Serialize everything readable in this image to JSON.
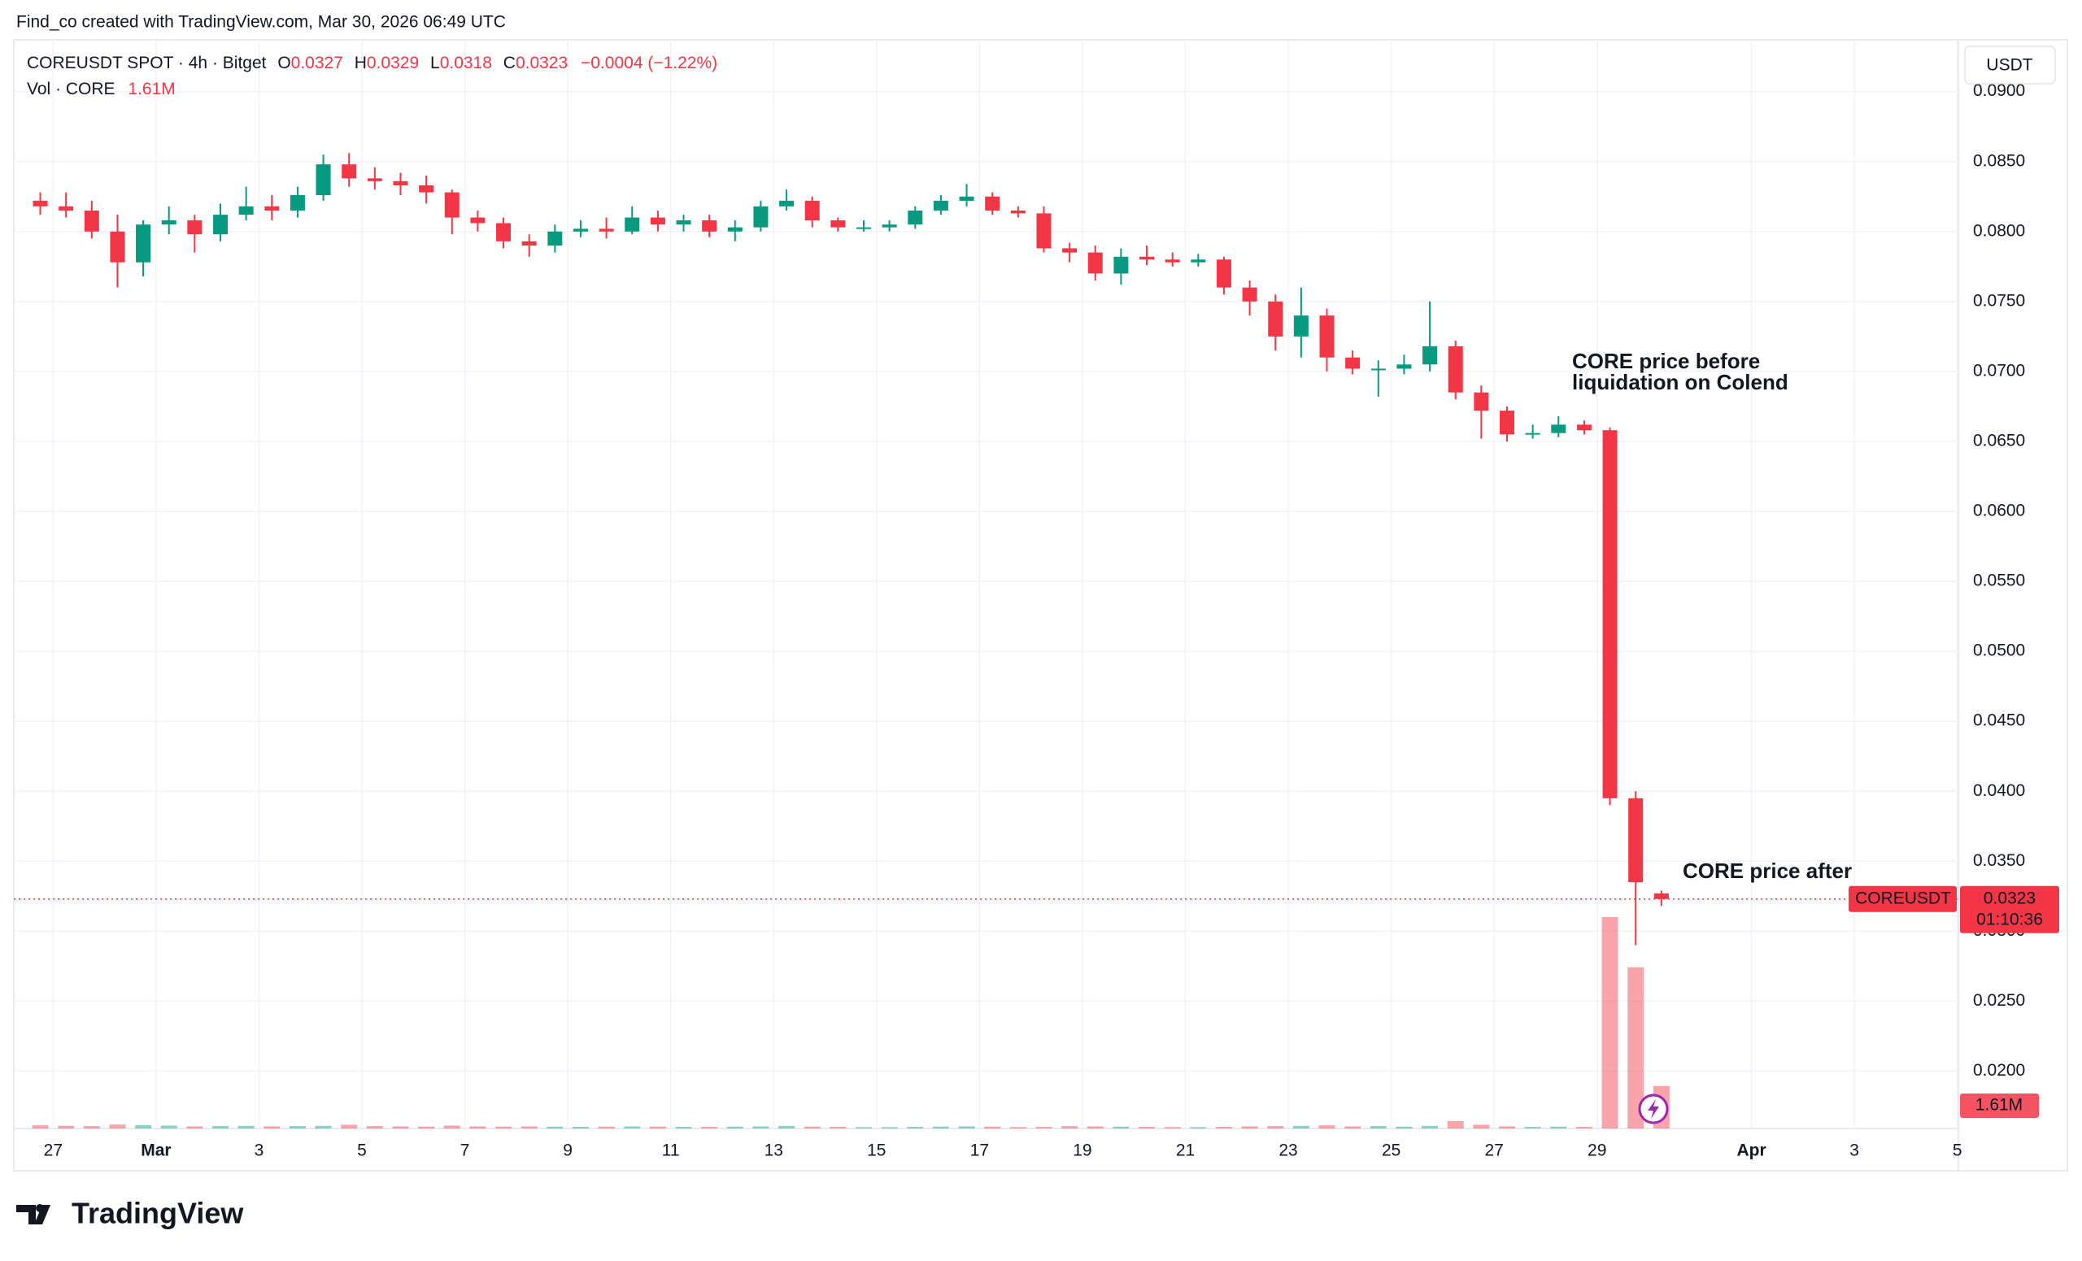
{
  "chart_data": {
    "type": "candlestick",
    "attribution": "Find_co created with TradingView.com, Mar 30, 2026 06:49 UTC",
    "symbol": "COREUSDT SPOT · 4h · Bitget",
    "ohlc_letters": [
      "O",
      "H",
      "L",
      "C"
    ],
    "change": "−0.0004 (−1.22%)",
    "volume_title": "Vol · CORE",
    "currency": "USDT",
    "symbol_tag": "COREUSDT",
    "countdown": "01:10:36",
    "brand": "TradingView",
    "annotations": [
      {
        "lines": [
          "CORE price before",
          "liquidation on Colend"
        ]
      },
      {
        "lines": [
          "CORE price after"
        ]
      }
    ],
    "up_color": "#089981",
    "down_color": "#f23645",
    "grid": true,
    "categories": [
      null,
      "27",
      null,
      null,
      null,
      "Mar",
      null,
      null,
      null,
      "3",
      null,
      null,
      null,
      "5",
      null,
      null,
      null,
      "7",
      null,
      null,
      null,
      "9",
      null,
      null,
      null,
      "11",
      null,
      null,
      null,
      "13",
      null,
      null,
      null,
      "15",
      null,
      null,
      null,
      "17",
      null,
      null,
      null,
      "19",
      null,
      null,
      null,
      "21",
      null,
      null,
      null,
      "23",
      null,
      null,
      null,
      "25",
      null,
      null,
      null,
      "27",
      null,
      null,
      null,
      "29",
      null,
      null,
      null,
      null,
      null,
      "Apr",
      null,
      null,
      null,
      "3",
      null,
      null,
      null,
      "5"
    ],
    "open": [
      0.0822,
      0.0818,
      0.0815,
      0.08,
      0.0778,
      0.0805,
      0.0808,
      0.0798,
      0.0812,
      0.0818,
      0.0815,
      0.0826,
      0.0848,
      0.0838,
      0.0836,
      0.0833,
      0.0828,
      0.081,
      0.0806,
      0.0793,
      0.079,
      0.08,
      0.0802,
      0.08,
      0.081,
      0.0805,
      0.0808,
      0.08,
      0.0803,
      0.0818,
      0.0822,
      0.0808,
      0.0803,
      0.0803,
      0.0805,
      0.0815,
      0.0822,
      0.0825,
      0.0815,
      0.0813,
      0.0788,
      0.0785,
      0.077,
      0.0782,
      0.078,
      0.0778,
      0.078,
      0.076,
      0.075,
      0.0725,
      0.074,
      0.071,
      0.0702,
      0.0702,
      0.0705,
      0.0718,
      0.0685,
      0.0672,
      0.0655,
      0.0656,
      0.0662,
      0.0658,
      0.0395,
      0.0327,
      null,
      null,
      null,
      null,
      null,
      null,
      null,
      null,
      null,
      null,
      null,
      null
    ],
    "high": [
      0.0828,
      0.0828,
      0.0822,
      0.0812,
      0.0808,
      0.0818,
      0.0812,
      0.082,
      0.0832,
      0.0826,
      0.0832,
      0.0855,
      0.0856,
      0.0846,
      0.0842,
      0.084,
      0.083,
      0.0815,
      0.081,
      0.0798,
      0.0805,
      0.0808,
      0.081,
      0.0818,
      0.0815,
      0.0812,
      0.0812,
      0.0808,
      0.0822,
      0.083,
      0.0825,
      0.081,
      0.0808,
      0.0808,
      0.0818,
      0.0826,
      0.0834,
      0.0828,
      0.0818,
      0.0818,
      0.0792,
      0.079,
      0.0788,
      0.079,
      0.0785,
      0.0784,
      0.0782,
      0.0765,
      0.0755,
      0.076,
      0.0745,
      0.0715,
      0.0708,
      0.0712,
      0.075,
      0.0722,
      0.069,
      0.0675,
      0.0662,
      0.0668,
      0.0665,
      0.066,
      0.04,
      0.0329,
      null,
      null,
      null,
      null,
      null,
      null,
      null,
      null,
      null,
      null,
      null,
      null
    ],
    "low": [
      0.0812,
      0.081,
      0.0795,
      0.076,
      0.0768,
      0.0798,
      0.0785,
      0.0793,
      0.0808,
      0.0808,
      0.081,
      0.0822,
      0.0832,
      0.083,
      0.0826,
      0.082,
      0.0798,
      0.08,
      0.0788,
      0.0782,
      0.0785,
      0.0796,
      0.0795,
      0.0798,
      0.08,
      0.08,
      0.0796,
      0.0793,
      0.08,
      0.0815,
      0.0803,
      0.08,
      0.08,
      0.08,
      0.0802,
      0.0812,
      0.0818,
      0.0812,
      0.081,
      0.0785,
      0.0778,
      0.0765,
      0.0762,
      0.0776,
      0.0775,
      0.0775,
      0.0755,
      0.074,
      0.0715,
      0.071,
      0.07,
      0.0698,
      0.0682,
      0.0698,
      0.07,
      0.068,
      0.0652,
      0.065,
      0.0652,
      0.0653,
      0.0655,
      0.039,
      0.029,
      0.0318,
      null,
      null,
      null,
      null,
      null,
      null,
      null,
      null,
      null,
      null,
      null,
      null
    ],
    "close": [
      0.0818,
      0.0815,
      0.08,
      0.0778,
      0.0805,
      0.0808,
      0.0798,
      0.0812,
      0.0818,
      0.0815,
      0.0826,
      0.0848,
      0.0838,
      0.0836,
      0.0833,
      0.0828,
      0.081,
      0.0806,
      0.0793,
      0.079,
      0.08,
      0.0802,
      0.08,
      0.081,
      0.0805,
      0.0808,
      0.08,
      0.0803,
      0.0818,
      0.0822,
      0.0808,
      0.0803,
      0.0803,
      0.0805,
      0.0815,
      0.0822,
      0.0825,
      0.0815,
      0.0813,
      0.0788,
      0.0785,
      0.077,
      0.0782,
      0.078,
      0.0778,
      0.078,
      0.076,
      0.075,
      0.0725,
      0.074,
      0.071,
      0.0702,
      0.0702,
      0.0705,
      0.0718,
      0.0685,
      0.0672,
      0.0655,
      0.0656,
      0.0662,
      0.0658,
      0.0395,
      0.0335,
      0.0323,
      null,
      null,
      null,
      null,
      null,
      null,
      null,
      null,
      null,
      null,
      null,
      null
    ],
    "volume": [
      0.12,
      0.1,
      0.09,
      0.15,
      0.13,
      0.11,
      0.08,
      0.09,
      0.1,
      0.08,
      0.09,
      0.1,
      0.14,
      0.09,
      0.08,
      0.07,
      0.11,
      0.08,
      0.07,
      0.08,
      0.07,
      0.06,
      0.07,
      0.08,
      0.07,
      0.06,
      0.06,
      0.07,
      0.08,
      0.1,
      0.07,
      0.06,
      0.05,
      0.05,
      0.06,
      0.07,
      0.08,
      0.07,
      0.05,
      0.06,
      0.09,
      0.08,
      0.07,
      0.06,
      0.05,
      0.05,
      0.06,
      0.08,
      0.09,
      0.1,
      0.12,
      0.08,
      0.09,
      0.07,
      0.1,
      0.28,
      0.14,
      0.08,
      0.06,
      0.07,
      0.06,
      8.0,
      6.1,
      1.61,
      null,
      null,
      null,
      null,
      null,
      null,
      null,
      null,
      null,
      null,
      null,
      null
    ],
    "volume_value_labels": [
      null,
      null,
      null,
      null,
      null,
      null,
      null,
      null,
      null,
      null,
      null,
      null,
      null,
      null,
      null,
      null,
      null,
      null,
      null,
      null,
      null,
      null,
      null,
      null,
      null,
      null,
      null,
      null,
      null,
      null,
      null,
      null,
      null,
      null,
      null,
      null,
      null,
      null,
      null,
      null,
      null,
      null,
      null,
      null,
      null,
      null,
      null,
      null,
      null,
      null,
      null,
      null,
      null,
      null,
      null,
      null,
      null,
      null,
      null,
      null,
      null,
      null,
      null,
      "1.61M",
      null,
      null,
      null,
      null,
      null,
      null,
      null,
      null,
      null,
      null,
      null,
      null
    ],
    "ylim": [
      0.0159,
      0.0937
    ],
    "yticks": [
      {
        "value": 0.02,
        "label": "0.0200"
      },
      {
        "value": 0.025,
        "label": "0.0250"
      },
      {
        "value": 0.03,
        "label": "0.0300"
      },
      {
        "value": 0.035,
        "label": "0.0350"
      },
      {
        "value": 0.04,
        "label": "0.0400"
      },
      {
        "value": 0.045,
        "label": "0.0450"
      },
      {
        "value": 0.05,
        "label": "0.0500"
      },
      {
        "value": 0.055,
        "label": "0.0550"
      },
      {
        "value": 0.06,
        "label": "0.0600"
      },
      {
        "value": 0.065,
        "label": "0.0650"
      },
      {
        "value": 0.07,
        "label": "0.0700"
      },
      {
        "value": 0.075,
        "label": "0.0750"
      },
      {
        "value": 0.08,
        "label": "0.0800"
      },
      {
        "value": 0.085,
        "label": "0.0850"
      },
      {
        "value": 0.09,
        "label": "0.0900"
      }
    ]
  }
}
